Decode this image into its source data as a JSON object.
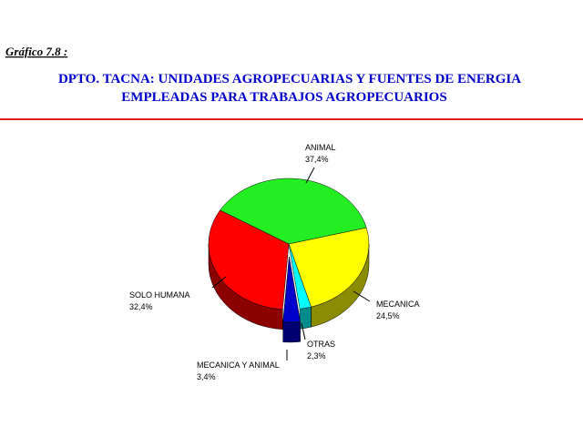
{
  "chart_data": {
    "type": "pie",
    "caption": "Gráfico 7.8 :",
    "title": [
      "DPTO. TACNA: UNIDADES AGROPECUARIAS Y FUENTES DE ENERGIA",
      "EMPLEADAS PARA TRABAJOS AGROPECUARIOS"
    ],
    "categories": [
      "ANIMAL",
      "MECANICA",
      "OTRAS",
      "MECANICA Y ANIMAL",
      "SOLO HUMANA"
    ],
    "values": [
      37.4,
      24.5,
      2.3,
      3.4,
      32.4
    ],
    "value_labels": [
      "37,4%",
      "24,5%",
      "2,3%",
      "3,4%",
      "32,4%"
    ],
    "colors": [
      "#22ee22",
      "#ffff00",
      "#00ffff",
      "#0000cc",
      "#ff0000"
    ],
    "exploded": [
      false,
      false,
      false,
      true,
      false
    ]
  }
}
